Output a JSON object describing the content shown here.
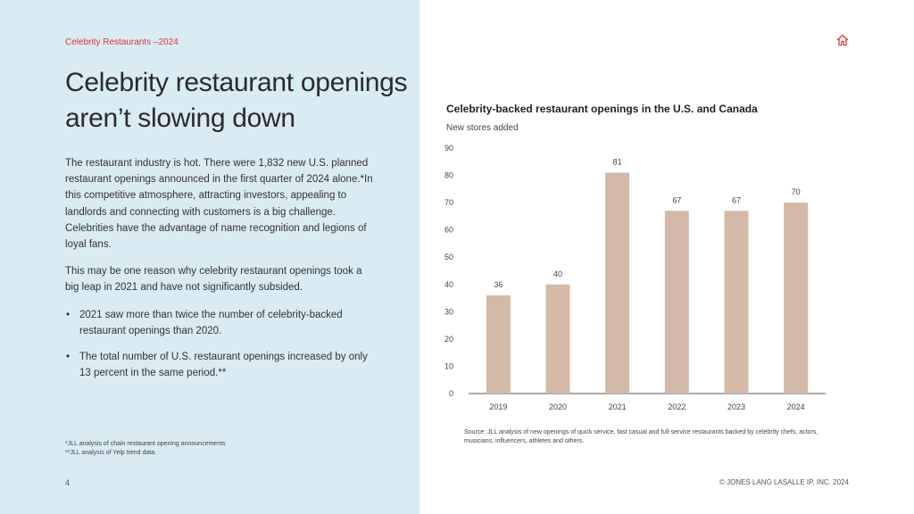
{
  "section_label": "Celebrity Restaurants –2024",
  "title": "Celebrity restaurant openings aren’t slowing down",
  "body": {
    "paragraph1": "The restaurant industry is hot. There were 1,832 new U.S. planned restaurant openings announced in the first quarter of 2024 alone.*In this competitive atmosphere, attracting investors, appealing to landlords and connecting with customers is a big challenge. Celebrities have the advantage of name recognition and legions of loyal fans.",
    "paragraph2": "This may be one reason why celebrity restaurant openings took a big leap in 2021 and have not significantly subsided.",
    "bullets": [
      "2021 saw more than twice the number of celebrity-backed restaurant openings than 2020.",
      "The total number of U.S. restaurant openings increased by only 13 percent in the same period.**"
    ]
  },
  "footnotes": [
    "*JLL analysis of chain restaurant opening announcements",
    "**JLL analysis of Yelp trend data."
  ],
  "page_number": "4",
  "copyright": "© JONES LANG LASALLE IP, INC. 2024",
  "icons": {
    "home": "home-icon"
  },
  "colors": {
    "accent": "#e0343c",
    "bar": "#d3b9a6",
    "left_panel": "#d9ebf3"
  },
  "chart_data": {
    "type": "bar",
    "title": "Celebrity-backed restaurant openings in the U.S. and Canada",
    "ylabel": "New stores added",
    "xlabel": "",
    "categories": [
      "2019",
      "2020",
      "2021",
      "2022",
      "2023",
      "2024"
    ],
    "values": [
      36,
      40,
      81,
      67,
      67,
      70
    ],
    "ylim": [
      0,
      90
    ],
    "yticks": [
      0,
      10,
      20,
      30,
      40,
      50,
      60,
      70,
      80,
      90
    ],
    "grid": false,
    "source": "Source: JLL analysis of new openings of quick service, fast casual and full-service restaurants backed by celebrity chefs, actors, musicians, influencers, athletes and others."
  }
}
